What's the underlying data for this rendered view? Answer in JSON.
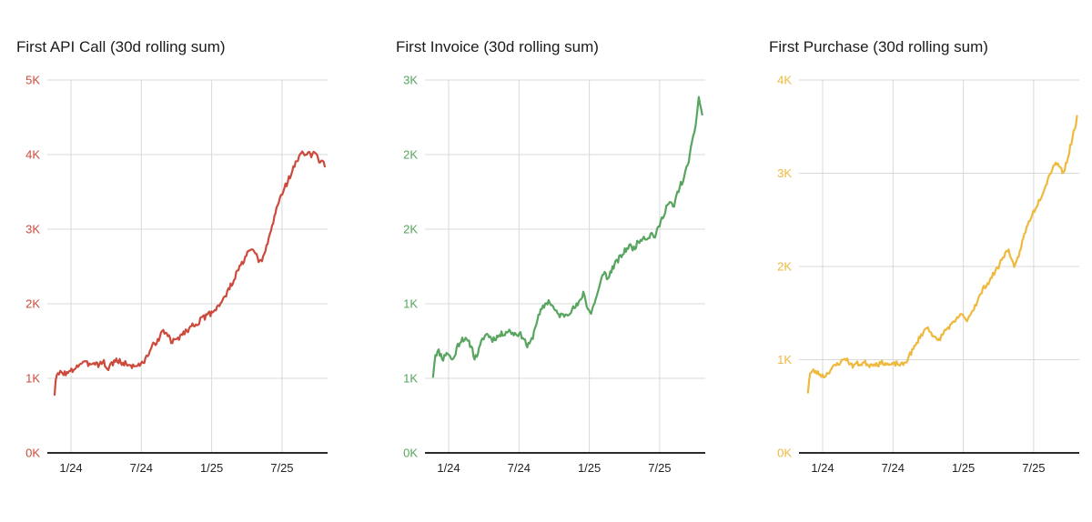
{
  "page": {
    "background": "#ffffff",
    "grid_color": "#d9d9d9",
    "axis_color": "#2b2b2b",
    "x_label_color": "#222222"
  },
  "chart_data": [
    {
      "type": "line",
      "title": "First API Call (30d rolling sum)",
      "color": "#cc4a3c",
      "unit": "K",
      "grid": true,
      "legend": "none",
      "y_axis": {
        "min": 0,
        "max": 5,
        "tick_labels_top_to_bottom": [
          "5K",
          "4K",
          "3K",
          "2K",
          "1K",
          "0K"
        ]
      },
      "x_tick_labels": [
        "1/24",
        "7/24",
        "1/25",
        "7/25"
      ],
      "noise": 0.04,
      "seed": 3,
      "points": [
        [
          0.026,
          0.8
        ],
        [
          0.03,
          0.97
        ],
        [
          0.036,
          1.04
        ],
        [
          0.045,
          1.07
        ],
        [
          0.058,
          1.08
        ],
        [
          0.071,
          1.06
        ],
        [
          0.084,
          1.09
        ],
        [
          0.104,
          1.16
        ],
        [
          0.123,
          1.21
        ],
        [
          0.143,
          1.19
        ],
        [
          0.162,
          1.22
        ],
        [
          0.182,
          1.19
        ],
        [
          0.201,
          1.22
        ],
        [
          0.21,
          1.16
        ],
        [
          0.214,
          1.11
        ],
        [
          0.227,
          1.19
        ],
        [
          0.247,
          1.24
        ],
        [
          0.266,
          1.21
        ],
        [
          0.286,
          1.19
        ],
        [
          0.305,
          1.16
        ],
        [
          0.325,
          1.19
        ],
        [
          0.334,
          1.17
        ],
        [
          0.351,
          1.26
        ],
        [
          0.37,
          1.4
        ],
        [
          0.39,
          1.5
        ],
        [
          0.409,
          1.6
        ],
        [
          0.419,
          1.63
        ],
        [
          0.432,
          1.57
        ],
        [
          0.442,
          1.48
        ],
        [
          0.458,
          1.51
        ],
        [
          0.477,
          1.58
        ],
        [
          0.497,
          1.64
        ],
        [
          0.516,
          1.7
        ],
        [
          0.536,
          1.75
        ],
        [
          0.555,
          1.8
        ],
        [
          0.575,
          1.85
        ],
        [
          0.588,
          1.89
        ],
        [
          0.604,
          1.95
        ],
        [
          0.62,
          2.02
        ],
        [
          0.636,
          2.1
        ],
        [
          0.649,
          2.2
        ],
        [
          0.662,
          2.3
        ],
        [
          0.675,
          2.4
        ],
        [
          0.688,
          2.5
        ],
        [
          0.701,
          2.58
        ],
        [
          0.714,
          2.66
        ],
        [
          0.724,
          2.74
        ],
        [
          0.734,
          2.7
        ],
        [
          0.744,
          2.64
        ],
        [
          0.753,
          2.6
        ],
        [
          0.763,
          2.55
        ],
        [
          0.773,
          2.64
        ],
        [
          0.782,
          2.76
        ],
        [
          0.795,
          2.95
        ],
        [
          0.808,
          3.12
        ],
        [
          0.821,
          3.32
        ],
        [
          0.834,
          3.45
        ],
        [
          0.847,
          3.56
        ],
        [
          0.86,
          3.66
        ],
        [
          0.873,
          3.78
        ],
        [
          0.886,
          3.88
        ],
        [
          0.899,
          3.97
        ],
        [
          0.912,
          4.04
        ],
        [
          0.922,
          3.99
        ],
        [
          0.932,
          4.03
        ],
        [
          0.942,
          3.97
        ],
        [
          0.951,
          4.02
        ],
        [
          0.961,
          3.99
        ],
        [
          0.971,
          3.91
        ],
        [
          0.981,
          3.96
        ],
        [
          0.99,
          3.86
        ]
      ]
    },
    {
      "type": "line",
      "title": "First Invoice (30d rolling sum)",
      "color": "#57a55e",
      "unit": "K",
      "grid": true,
      "legend": "none",
      "y_axis": {
        "min": 0.5,
        "max": 3,
        "tick_labels_top_to_bottom": [
          "3K",
          "2K",
          "2K",
          "1K",
          "1K",
          "0K"
        ]
      },
      "x_tick_labels": [
        "1/24",
        "7/24",
        "1/25",
        "7/25"
      ],
      "noise": 0.02,
      "seed": 11,
      "points": [
        [
          0.029,
          1.02
        ],
        [
          0.033,
          1.1
        ],
        [
          0.036,
          1.16
        ],
        [
          0.049,
          1.18
        ],
        [
          0.065,
          1.13
        ],
        [
          0.078,
          1.18
        ],
        [
          0.087,
          1.15
        ],
        [
          0.1,
          1.12
        ],
        [
          0.117,
          1.22
        ],
        [
          0.133,
          1.27
        ],
        [
          0.149,
          1.25
        ],
        [
          0.165,
          1.22
        ],
        [
          0.178,
          1.13
        ],
        [
          0.191,
          1.18
        ],
        [
          0.207,
          1.27
        ],
        [
          0.223,
          1.3
        ],
        [
          0.239,
          1.26
        ],
        [
          0.259,
          1.28
        ],
        [
          0.278,
          1.3
        ],
        [
          0.298,
          1.32
        ],
        [
          0.317,
          1.3
        ],
        [
          0.333,
          1.3
        ],
        [
          0.35,
          1.28
        ],
        [
          0.366,
          1.21
        ],
        [
          0.382,
          1.26
        ],
        [
          0.398,
          1.38
        ],
        [
          0.414,
          1.45
        ],
        [
          0.43,
          1.5
        ],
        [
          0.443,
          1.52
        ],
        [
          0.456,
          1.48
        ],
        [
          0.472,
          1.43
        ],
        [
          0.492,
          1.42
        ],
        [
          0.511,
          1.44
        ],
        [
          0.531,
          1.47
        ],
        [
          0.55,
          1.5
        ],
        [
          0.566,
          1.58
        ],
        [
          0.579,
          1.48
        ],
        [
          0.592,
          1.43
        ],
        [
          0.605,
          1.51
        ],
        [
          0.618,
          1.58
        ],
        [
          0.631,
          1.67
        ],
        [
          0.641,
          1.73
        ],
        [
          0.65,
          1.65
        ],
        [
          0.663,
          1.72
        ],
        [
          0.68,
          1.77
        ],
        [
          0.696,
          1.81
        ],
        [
          0.712,
          1.85
        ],
        [
          0.728,
          1.89
        ],
        [
          0.744,
          1.87
        ],
        [
          0.76,
          1.91
        ],
        [
          0.777,
          1.95
        ],
        [
          0.793,
          1.94
        ],
        [
          0.809,
          1.97
        ],
        [
          0.822,
          1.95
        ],
        [
          0.835,
          2.02
        ],
        [
          0.848,
          2.08
        ],
        [
          0.861,
          2.15
        ],
        [
          0.874,
          2.18
        ],
        [
          0.887,
          2.14
        ],
        [
          0.9,
          2.24
        ],
        [
          0.913,
          2.3
        ],
        [
          0.926,
          2.35
        ],
        [
          0.939,
          2.45
        ],
        [
          0.951,
          2.55
        ],
        [
          0.964,
          2.68
        ],
        [
          0.977,
          2.88
        ],
        [
          0.983,
          2.83
        ],
        [
          0.99,
          2.76
        ]
      ]
    },
    {
      "type": "line",
      "title": "First Purchase (30d rolling sum)",
      "color": "#eeb93d",
      "unit": "K",
      "grid": true,
      "legend": "none",
      "y_axis": {
        "min": 0,
        "max": 4,
        "tick_labels_top_to_bottom": [
          "4K",
          "3K",
          "2K",
          "1K",
          "0K"
        ]
      },
      "x_tick_labels": [
        "1/24",
        "7/24",
        "1/25",
        "7/25"
      ],
      "noise": 0.025,
      "seed": 23,
      "points": [
        [
          0.032,
          0.66
        ],
        [
          0.036,
          0.78
        ],
        [
          0.039,
          0.85
        ],
        [
          0.052,
          0.88
        ],
        [
          0.065,
          0.86
        ],
        [
          0.077,
          0.84
        ],
        [
          0.09,
          0.82
        ],
        [
          0.103,
          0.86
        ],
        [
          0.119,
          0.91
        ],
        [
          0.135,
          0.95
        ],
        [
          0.152,
          0.98
        ],
        [
          0.165,
          1.02
        ],
        [
          0.177,
          0.98
        ],
        [
          0.19,
          0.93
        ],
        [
          0.203,
          0.96
        ],
        [
          0.219,
          0.95
        ],
        [
          0.235,
          0.97
        ],
        [
          0.252,
          0.94
        ],
        [
          0.268,
          0.96
        ],
        [
          0.284,
          0.95
        ],
        [
          0.3,
          0.97
        ],
        [
          0.316,
          0.95
        ],
        [
          0.332,
          0.94
        ],
        [
          0.348,
          0.96
        ],
        [
          0.365,
          0.94
        ],
        [
          0.381,
          0.97
        ],
        [
          0.394,
          1.05
        ],
        [
          0.406,
          1.1
        ],
        [
          0.419,
          1.17
        ],
        [
          0.432,
          1.25
        ],
        [
          0.445,
          1.3
        ],
        [
          0.458,
          1.35
        ],
        [
          0.471,
          1.3
        ],
        [
          0.484,
          1.23
        ],
        [
          0.497,
          1.2
        ],
        [
          0.51,
          1.26
        ],
        [
          0.523,
          1.32
        ],
        [
          0.539,
          1.36
        ],
        [
          0.555,
          1.4
        ],
        [
          0.568,
          1.45
        ],
        [
          0.577,
          1.5
        ],
        [
          0.587,
          1.45
        ],
        [
          0.597,
          1.42
        ],
        [
          0.61,
          1.48
        ],
        [
          0.623,
          1.55
        ],
        [
          0.635,
          1.62
        ],
        [
          0.648,
          1.7
        ],
        [
          0.661,
          1.78
        ],
        [
          0.674,
          1.82
        ],
        [
          0.687,
          1.88
        ],
        [
          0.7,
          1.95
        ],
        [
          0.713,
          2.0
        ],
        [
          0.726,
          2.1
        ],
        [
          0.739,
          2.15
        ],
        [
          0.748,
          2.17
        ],
        [
          0.758,
          2.1
        ],
        [
          0.768,
          1.97
        ],
        [
          0.777,
          2.05
        ],
        [
          0.787,
          2.15
        ],
        [
          0.8,
          2.3
        ],
        [
          0.813,
          2.42
        ],
        [
          0.826,
          2.52
        ],
        [
          0.839,
          2.6
        ],
        [
          0.852,
          2.68
        ],
        [
          0.865,
          2.76
        ],
        [
          0.877,
          2.85
        ],
        [
          0.89,
          2.95
        ],
        [
          0.903,
          3.05
        ],
        [
          0.916,
          3.12
        ],
        [
          0.929,
          3.08
        ],
        [
          0.942,
          3.0
        ],
        [
          0.955,
          3.12
        ],
        [
          0.968,
          3.28
        ],
        [
          0.981,
          3.45
        ],
        [
          0.994,
          3.62
        ]
      ]
    }
  ]
}
